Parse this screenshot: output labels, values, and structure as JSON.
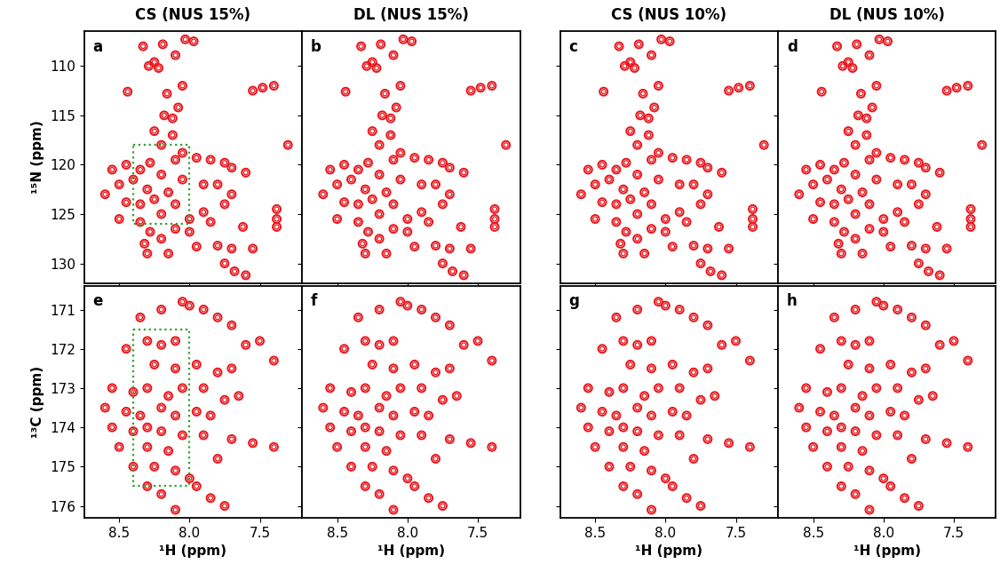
{
  "chart_data": [
    {
      "type": "scatter",
      "title": "CS (NUS 15%)",
      "label": "a",
      "y_label": "¹⁵N (ppm)",
      "tick_labels": "y",
      "color": "#e8141b",
      "marker": "o",
      "xlim": [
        8.75,
        7.2
      ],
      "xticks": [
        8.5,
        8.0,
        7.5
      ],
      "ylim": [
        132,
        106.5
      ],
      "yticks": [
        110,
        115,
        120,
        125,
        130
      ],
      "box": {
        "x": [
          8.4,
          8.0
        ],
        "y": [
          118,
          126
        ],
        "color": "#2ca02c",
        "line_style": "dotted"
      },
      "x": [
        8.33,
        8.19,
        8.03,
        7.97,
        8.29,
        8.25,
        8.22,
        8.1,
        8.44,
        8.16,
        8.05,
        7.55,
        7.48,
        7.4,
        8.18,
        8.12,
        8.08,
        8.25,
        8.12,
        8.2,
        8.05,
        7.3,
        8.45,
        8.35,
        8.28,
        8.1,
        7.95,
        7.85,
        7.75,
        7.7,
        8.55,
        8.5,
        8.4,
        8.3,
        8.2,
        8.15,
        8.05,
        7.9,
        7.8,
        7.7,
        7.6,
        8.6,
        8.45,
        8.35,
        8.25,
        8.1,
        7.9,
        7.75,
        7.38,
        7.38,
        8.5,
        8.35,
        8.2,
        8.0,
        7.85,
        8.28,
        8.2,
        8.32,
        8.1,
        8.0,
        7.95,
        7.8,
        7.7,
        7.55,
        7.75,
        7.68,
        7.6,
        8.3,
        8.15,
        7.62,
        7.38
      ],
      "values": [
        108.0,
        107.8,
        107.3,
        107.5,
        110.0,
        109.6,
        110.2,
        108.9,
        112.6,
        112.8,
        112.0,
        112.5,
        112.2,
        112.0,
        115.0,
        115.3,
        114.2,
        116.6,
        117.0,
        118.0,
        118.8,
        118.0,
        120.0,
        120.5,
        119.8,
        119.5,
        119.3,
        119.5,
        119.8,
        120.3,
        120.5,
        122.0,
        121.5,
        122.5,
        121.0,
        122.8,
        121.5,
        122.0,
        122.0,
        123.0,
        120.8,
        123.0,
        123.8,
        124.0,
        123.5,
        124.0,
        124.8,
        124.0,
        124.5,
        125.5,
        125.5,
        125.8,
        125.0,
        125.5,
        125.8,
        126.8,
        127.5,
        128.0,
        126.5,
        126.8,
        128.3,
        128.2,
        128.5,
        128.5,
        130.0,
        130.8,
        131.2,
        129.0,
        129.0,
        126.3,
        126.3
      ]
    },
    {
      "type": "scatter",
      "title": "DL (NUS 15%)",
      "label": "b",
      "tick_labels": false,
      "color": "#e8141b",
      "marker": "o",
      "xlim": [
        8.75,
        7.2
      ],
      "xticks": [
        8.5,
        8.0,
        7.5
      ],
      "ylim": [
        132,
        106.5
      ],
      "yticks": [
        110,
        115,
        120,
        125,
        130
      ],
      "x": [
        8.33,
        8.19,
        8.03,
        7.97,
        8.29,
        8.25,
        8.22,
        8.1,
        8.44,
        8.16,
        8.05,
        7.55,
        7.48,
        7.4,
        8.18,
        8.12,
        8.08,
        8.25,
        8.12,
        8.2,
        8.05,
        7.3,
        8.45,
        8.35,
        8.28,
        8.1,
        7.95,
        7.85,
        7.75,
        7.7,
        8.55,
        8.5,
        8.4,
        8.3,
        8.2,
        8.15,
        8.05,
        7.9,
        7.8,
        7.7,
        7.6,
        8.6,
        8.45,
        8.35,
        8.25,
        8.1,
        7.9,
        7.75,
        7.38,
        7.38,
        8.5,
        8.35,
        8.2,
        8.0,
        7.85,
        8.28,
        8.2,
        8.32,
        8.1,
        8.0,
        7.95,
        7.8,
        7.7,
        7.55,
        7.75,
        7.68,
        7.6,
        8.3,
        8.15,
        7.62,
        7.38
      ],
      "values": [
        108.0,
        107.8,
        107.3,
        107.5,
        110.0,
        109.6,
        110.2,
        108.9,
        112.6,
        112.8,
        112.0,
        112.5,
        112.2,
        112.0,
        115.0,
        115.3,
        114.2,
        116.6,
        117.0,
        118.0,
        118.8,
        118.0,
        120.0,
        120.5,
        119.8,
        119.5,
        119.3,
        119.5,
        119.8,
        120.3,
        120.5,
        122.0,
        121.5,
        122.5,
        121.0,
        122.8,
        121.5,
        122.0,
        122.0,
        123.0,
        120.8,
        123.0,
        123.8,
        124.0,
        123.5,
        124.0,
        124.8,
        124.0,
        124.5,
        125.5,
        125.5,
        125.8,
        125.0,
        125.5,
        125.8,
        126.8,
        127.5,
        128.0,
        126.5,
        126.8,
        128.3,
        128.2,
        128.5,
        128.5,
        130.0,
        130.8,
        131.2,
        129.0,
        129.0,
        126.3,
        126.3
      ]
    },
    {
      "type": "scatter",
      "title": "CS (NUS 10%)",
      "label": "c",
      "tick_labels": false,
      "color": "#e8141b",
      "marker": "o",
      "xlim": [
        8.75,
        7.2
      ],
      "xticks": [
        8.5,
        8.0,
        7.5
      ],
      "ylim": [
        132,
        106.5
      ],
      "yticks": [
        110,
        115,
        120,
        125,
        130
      ],
      "x": [
        8.33,
        8.19,
        8.03,
        7.97,
        8.29,
        8.25,
        8.22,
        8.1,
        8.44,
        8.16,
        8.05,
        7.55,
        7.48,
        7.4,
        8.18,
        8.12,
        8.08,
        8.25,
        8.12,
        8.2,
        8.05,
        7.3,
        8.45,
        8.35,
        8.28,
        8.1,
        7.95,
        7.85,
        7.75,
        7.7,
        8.55,
        8.5,
        8.4,
        8.3,
        8.2,
        8.15,
        8.05,
        7.9,
        7.8,
        7.7,
        7.6,
        8.6,
        8.45,
        8.35,
        8.25,
        8.1,
        7.9,
        7.75,
        7.38,
        7.38,
        8.5,
        8.35,
        8.2,
        8.0,
        7.85,
        8.28,
        8.2,
        8.32,
        8.1,
        8.0,
        7.95,
        7.8,
        7.7,
        7.55,
        7.75,
        7.68,
        7.6,
        8.3,
        8.15,
        7.62,
        7.38
      ],
      "values": [
        108.0,
        107.8,
        107.3,
        107.5,
        110.0,
        109.6,
        110.2,
        108.9,
        112.6,
        112.8,
        112.0,
        112.5,
        112.2,
        112.0,
        115.0,
        115.3,
        114.2,
        116.6,
        117.0,
        118.0,
        118.8,
        118.0,
        120.0,
        120.5,
        119.8,
        119.5,
        119.3,
        119.5,
        119.8,
        120.3,
        120.5,
        122.0,
        121.5,
        122.5,
        121.0,
        122.8,
        121.5,
        122.0,
        122.0,
        123.0,
        120.8,
        123.0,
        123.8,
        124.0,
        123.5,
        124.0,
        124.8,
        124.0,
        124.5,
        125.5,
        125.5,
        125.8,
        125.0,
        125.5,
        125.8,
        126.8,
        127.5,
        128.0,
        126.5,
        126.8,
        128.3,
        128.2,
        128.5,
        128.5,
        130.0,
        130.8,
        131.2,
        129.0,
        129.0,
        126.3,
        126.3
      ]
    },
    {
      "type": "scatter",
      "title": "DL (NUS 10%)",
      "label": "d",
      "tick_labels": false,
      "color": "#e8141b",
      "marker": "o",
      "xlim": [
        8.75,
        7.2
      ],
      "xticks": [
        8.5,
        8.0,
        7.5
      ],
      "ylim": [
        132,
        106.5
      ],
      "yticks": [
        110,
        115,
        120,
        125,
        130
      ],
      "x": [
        8.33,
        8.19,
        8.03,
        7.97,
        8.29,
        8.25,
        8.22,
        8.1,
        8.44,
        8.16,
        8.05,
        7.55,
        7.48,
        7.4,
        8.18,
        8.12,
        8.08,
        8.25,
        8.12,
        8.2,
        8.05,
        7.3,
        8.45,
        8.35,
        8.28,
        8.1,
        7.95,
        7.85,
        7.75,
        7.7,
        8.55,
        8.5,
        8.4,
        8.3,
        8.2,
        8.15,
        8.05,
        7.9,
        7.8,
        7.7,
        7.6,
        8.6,
        8.45,
        8.35,
        8.25,
        8.1,
        7.9,
        7.75,
        7.38,
        7.38,
        8.5,
        8.35,
        8.2,
        8.0,
        7.85,
        8.28,
        8.2,
        8.32,
        8.1,
        8.0,
        7.95,
        7.8,
        7.7,
        7.55,
        7.75,
        7.68,
        7.6,
        8.3,
        8.15,
        7.62,
        7.38
      ],
      "values": [
        108.0,
        107.8,
        107.3,
        107.5,
        110.0,
        109.6,
        110.2,
        108.9,
        112.6,
        112.8,
        112.0,
        112.5,
        112.2,
        112.0,
        115.0,
        115.3,
        114.2,
        116.6,
        117.0,
        118.0,
        118.8,
        118.0,
        120.0,
        120.5,
        119.8,
        119.5,
        119.3,
        119.5,
        119.8,
        120.3,
        120.5,
        122.0,
        121.5,
        122.5,
        121.0,
        122.8,
        121.5,
        122.0,
        122.0,
        123.0,
        120.8,
        123.0,
        123.8,
        124.0,
        123.5,
        124.0,
        124.8,
        124.0,
        124.5,
        125.5,
        125.5,
        125.8,
        125.0,
        125.5,
        125.8,
        126.8,
        127.5,
        128.0,
        126.5,
        126.8,
        128.3,
        128.2,
        128.5,
        128.5,
        130.0,
        130.8,
        131.2,
        129.0,
        129.0,
        126.3,
        126.3
      ]
    },
    {
      "type": "scatter",
      "label": "e",
      "x_label": "¹H (ppm)",
      "y_label": "¹³C (ppm)",
      "color": "#e8141b",
      "marker": "o",
      "xlim": [
        8.75,
        7.2
      ],
      "xticks": [
        8.5,
        8.0,
        7.5
      ],
      "ylim": [
        176.3,
        170.4
      ],
      "yticks": [
        171,
        172,
        173,
        174,
        175,
        176
      ],
      "box": {
        "x": [
          8.4,
          8.0
        ],
        "y": [
          171.5,
          175.5
        ],
        "color": "#2ca02c",
        "line_style": "dotted"
      },
      "x": [
        8.05,
        8.0,
        7.9,
        7.8,
        8.35,
        8.2,
        7.7,
        8.3,
        8.2,
        8.1,
        7.5,
        7.6,
        7.4,
        8.45,
        8.25,
        8.1,
        7.95,
        7.8,
        7.7,
        7.9,
        8.55,
        8.4,
        8.3,
        8.15,
        8.05,
        7.75,
        7.65,
        8.6,
        8.45,
        8.35,
        8.2,
        8.1,
        7.95,
        7.85,
        8.55,
        8.4,
        8.3,
        8.2,
        8.05,
        7.9,
        7.7,
        7.55,
        7.4,
        8.5,
        8.3,
        8.15,
        7.8,
        8.4,
        8.25,
        8.1,
        8.0,
        7.95,
        8.3,
        8.2,
        7.85,
        7.75,
        8.1
      ],
      "values": [
        170.8,
        170.9,
        171.0,
        171.2,
        171.2,
        171.0,
        171.4,
        171.8,
        171.9,
        171.8,
        171.8,
        171.9,
        172.3,
        172.0,
        172.4,
        172.5,
        172.4,
        172.6,
        172.5,
        173.0,
        173.0,
        173.1,
        173.0,
        173.2,
        173.0,
        173.3,
        173.2,
        173.5,
        173.6,
        173.7,
        173.5,
        173.7,
        173.6,
        173.7,
        174.0,
        174.1,
        174.0,
        174.1,
        174.2,
        174.2,
        174.3,
        174.4,
        174.5,
        174.5,
        174.5,
        174.6,
        174.8,
        175.0,
        175.0,
        175.1,
        175.3,
        175.5,
        175.5,
        175.7,
        175.8,
        176.0,
        176.1
      ]
    },
    {
      "type": "scatter",
      "label": "f",
      "x_label": "¹H (ppm)",
      "tick_labels": "x",
      "color": "#e8141b",
      "marker": "o",
      "xlim": [
        8.75,
        7.2
      ],
      "xticks": [
        8.5,
        8.0,
        7.5
      ],
      "ylim": [
        176.3,
        170.4
      ],
      "yticks": [
        171,
        172,
        173,
        174,
        175,
        176
      ],
      "x": [
        8.05,
        8.0,
        7.9,
        7.8,
        8.35,
        8.2,
        7.7,
        8.3,
        8.2,
        8.1,
        7.5,
        7.6,
        7.4,
        8.45,
        8.25,
        8.1,
        7.95,
        7.8,
        7.7,
        7.9,
        8.55,
        8.4,
        8.3,
        8.15,
        8.05,
        7.75,
        7.65,
        8.6,
        8.45,
        8.35,
        8.2,
        8.1,
        7.95,
        7.85,
        8.55,
        8.4,
        8.3,
        8.2,
        8.05,
        7.9,
        7.7,
        7.55,
        7.4,
        8.5,
        8.3,
        8.15,
        7.8,
        8.4,
        8.25,
        8.1,
        8.0,
        7.95,
        8.3,
        8.2,
        7.85,
        7.75,
        8.1
      ],
      "values": [
        170.8,
        170.9,
        171.0,
        171.2,
        171.2,
        171.0,
        171.4,
        171.8,
        171.9,
        171.8,
        171.8,
        171.9,
        172.3,
        172.0,
        172.4,
        172.5,
        172.4,
        172.6,
        172.5,
        173.0,
        173.0,
        173.1,
        173.0,
        173.2,
        173.0,
        173.3,
        173.2,
        173.5,
        173.6,
        173.7,
        173.5,
        173.7,
        173.6,
        173.7,
        174.0,
        174.1,
        174.0,
        174.1,
        174.2,
        174.2,
        174.3,
        174.4,
        174.5,
        174.5,
        174.5,
        174.6,
        174.8,
        175.0,
        175.0,
        175.1,
        175.3,
        175.5,
        175.5,
        175.7,
        175.8,
        176.0,
        176.1
      ]
    },
    {
      "type": "scatter",
      "label": "g",
      "x_label": "¹H (ppm)",
      "tick_labels": "x",
      "color": "#e8141b",
      "marker": "o",
      "xlim": [
        8.75,
        7.2
      ],
      "xticks": [
        8.5,
        8.0,
        7.5
      ],
      "ylim": [
        176.3,
        170.4
      ],
      "yticks": [
        171,
        172,
        173,
        174,
        175,
        176
      ],
      "x": [
        8.05,
        8.0,
        7.9,
        7.8,
        8.35,
        8.2,
        7.7,
        8.3,
        8.2,
        8.1,
        7.5,
        7.6,
        7.4,
        8.45,
        8.25,
        8.1,
        7.95,
        7.8,
        7.7,
        7.9,
        8.55,
        8.4,
        8.3,
        8.15,
        8.05,
        7.75,
        7.65,
        8.6,
        8.45,
        8.35,
        8.2,
        8.1,
        7.95,
        7.85,
        8.55,
        8.4,
        8.3,
        8.2,
        8.05,
        7.9,
        7.7,
        7.55,
        7.4,
        8.5,
        8.3,
        8.15,
        7.8,
        8.4,
        8.25,
        8.1,
        8.0,
        7.95,
        8.3,
        8.2,
        7.85,
        7.75,
        8.1
      ],
      "values": [
        170.8,
        170.9,
        171.0,
        171.2,
        171.2,
        171.0,
        171.4,
        171.8,
        171.9,
        171.8,
        171.8,
        171.9,
        172.3,
        172.0,
        172.4,
        172.5,
        172.4,
        172.6,
        172.5,
        173.0,
        173.0,
        173.1,
        173.0,
        173.2,
        173.0,
        173.3,
        173.2,
        173.5,
        173.6,
        173.7,
        173.5,
        173.7,
        173.6,
        173.7,
        174.0,
        174.1,
        174.0,
        174.1,
        174.2,
        174.2,
        174.3,
        174.4,
        174.5,
        174.5,
        174.5,
        174.6,
        174.8,
        175.0,
        175.0,
        175.1,
        175.3,
        175.5,
        175.5,
        175.7,
        175.8,
        176.0,
        176.1
      ]
    },
    {
      "type": "scatter",
      "label": "h",
      "x_label": "¹H (ppm)",
      "tick_labels": "x",
      "color": "#e8141b",
      "marker": "o",
      "xlim": [
        8.75,
        7.2
      ],
      "xticks": [
        8.5,
        8.0,
        7.5
      ],
      "ylim": [
        176.3,
        170.4
      ],
      "yticks": [
        171,
        172,
        173,
        174,
        175,
        176
      ],
      "x": [
        8.05,
        8.0,
        7.9,
        7.8,
        8.35,
        8.2,
        7.7,
        8.3,
        8.2,
        8.1,
        7.5,
        7.6,
        7.4,
        8.45,
        8.25,
        8.1,
        7.95,
        7.8,
        7.7,
        7.9,
        8.55,
        8.4,
        8.3,
        8.15,
        8.05,
        7.75,
        7.65,
        8.6,
        8.45,
        8.35,
        8.2,
        8.1,
        7.95,
        7.85,
        8.55,
        8.4,
        8.3,
        8.2,
        8.05,
        7.9,
        7.7,
        7.55,
        7.4,
        8.5,
        8.3,
        8.15,
        7.8,
        8.4,
        8.25,
        8.1,
        8.0,
        7.95,
        8.3,
        8.2,
        7.85,
        7.75,
        8.1
      ],
      "values": [
        170.8,
        170.9,
        171.0,
        171.2,
        171.2,
        171.0,
        171.4,
        171.8,
        171.9,
        171.8,
        171.8,
        171.9,
        172.3,
        172.0,
        172.4,
        172.5,
        172.4,
        172.6,
        172.5,
        173.0,
        173.0,
        173.1,
        173.0,
        173.2,
        173.0,
        173.3,
        173.2,
        173.5,
        173.6,
        173.7,
        173.5,
        173.7,
        173.6,
        173.7,
        174.0,
        174.1,
        174.0,
        174.1,
        174.2,
        174.2,
        174.3,
        174.4,
        174.5,
        174.5,
        174.5,
        174.6,
        174.8,
        175.0,
        175.0,
        175.1,
        175.3,
        175.5,
        175.5,
        175.7,
        175.8,
        176.0,
        176.1
      ]
    }
  ]
}
